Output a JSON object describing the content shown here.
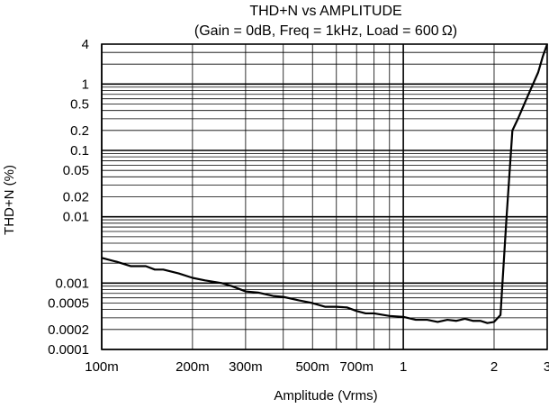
{
  "chart_data": {
    "type": "line",
    "title": "THD+N vs AMPLITUDE",
    "subtitle": "(Gain = 0dB, Freq = 1kHz, Load = 600 Ω)",
    "xlabel": "Amplitude (Vrms)",
    "ylabel": "THD+N (%)",
    "x_scale": "log",
    "y_scale": "log",
    "xlim": [
      0.1,
      3
    ],
    "ylim": [
      0.0001,
      4
    ],
    "grid": true,
    "x_ticks": [
      {
        "value": 0.1,
        "label": "100m"
      },
      {
        "value": 0.2,
        "label": "200m"
      },
      {
        "value": 0.3,
        "label": "300m"
      },
      {
        "value": 0.5,
        "label": "500m"
      },
      {
        "value": 0.7,
        "label": "700m"
      },
      {
        "value": 1,
        "label": "1"
      },
      {
        "value": 2,
        "label": "2"
      },
      {
        "value": 3,
        "label": "3"
      }
    ],
    "y_ticks": [
      {
        "value": 0.0001,
        "label": "0.0001"
      },
      {
        "value": 0.0002,
        "label": "0.0002"
      },
      {
        "value": 0.0005,
        "label": "0.0005"
      },
      {
        "value": 0.001,
        "label": "0.001"
      },
      {
        "value": 0.01,
        "label": "0.01"
      },
      {
        "value": 0.02,
        "label": "0.02"
      },
      {
        "value": 0.05,
        "label": "0.05"
      },
      {
        "value": 0.1,
        "label": "0.1"
      },
      {
        "value": 0.2,
        "label": "0.2"
      },
      {
        "value": 0.5,
        "label": "0.5"
      },
      {
        "value": 1,
        "label": "1"
      },
      {
        "value": 4,
        "label": "4"
      }
    ],
    "series": [
      {
        "color": "#000000",
        "x": [
          0.1,
          0.112,
          0.125,
          0.14,
          0.15,
          0.16,
          0.18,
          0.2,
          0.22,
          0.25,
          0.27,
          0.3,
          0.33,
          0.37,
          0.4,
          0.45,
          0.5,
          0.55,
          0.6,
          0.65,
          0.7,
          0.75,
          0.8,
          0.9,
          1.0,
          1.1,
          1.2,
          1.3,
          1.4,
          1.5,
          1.6,
          1.7,
          1.8,
          1.9,
          2.0,
          2.1,
          2.2,
          2.3,
          2.4,
          2.6,
          2.8,
          2.9,
          3.0
        ],
        "y": [
          0.0024,
          0.0021,
          0.0018,
          0.0018,
          0.0016,
          0.0016,
          0.0014,
          0.0012,
          0.0011,
          0.001,
          0.0009,
          0.00075,
          0.00072,
          0.00064,
          0.00062,
          0.00055,
          0.0005,
          0.00044,
          0.00044,
          0.00043,
          0.00038,
          0.00035,
          0.00035,
          0.00032,
          0.00031,
          0.00028,
          0.00028,
          0.00026,
          0.00028,
          0.00027,
          0.00029,
          0.00027,
          0.00027,
          0.00025,
          0.00026,
          0.00033,
          0.01,
          0.2,
          0.3,
          0.7,
          1.5,
          2.6,
          4
        ]
      }
    ]
  }
}
